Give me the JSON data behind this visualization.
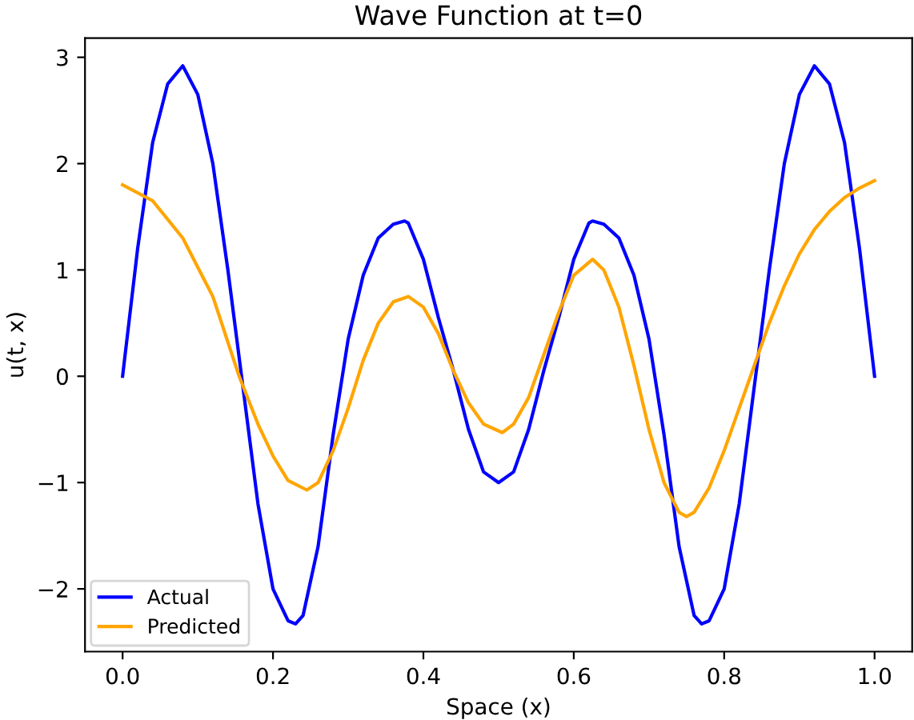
{
  "chart_data": {
    "type": "line",
    "title": "Wave Function at t=0",
    "xlabel": "Space (x)",
    "ylabel": "u(t, x)",
    "xlim": [
      -0.05,
      1.05
    ],
    "ylim": [
      -2.59,
      3.18
    ],
    "xticks": [
      {
        "value": 0,
        "label": "0.0"
      },
      0.2,
      0.4,
      0.6,
      0.8,
      {
        "value": 1,
        "label": "1.0"
      }
    ],
    "yticks": [
      {
        "value": -2,
        "label": "−2"
      },
      {
        "value": -1,
        "label": "−1"
      },
      0,
      1,
      2,
      3
    ],
    "grid": false,
    "legend": "lower left",
    "series": [
      {
        "name": "Actual",
        "color": "#0000ff",
        "x": [
          0,
          0.02,
          0.04,
          0.06,
          0.08,
          0.1,
          0.12,
          0.14,
          0.16,
          0.18,
          0.2,
          0.22,
          0.23,
          0.24,
          0.26,
          0.28,
          0.3,
          0.32,
          0.34,
          0.36,
          0.375,
          0.38,
          0.4,
          0.42,
          0.44,
          0.46,
          0.48,
          0.5,
          0.52,
          0.54,
          0.56,
          0.58,
          0.6,
          0.62,
          0.625,
          0.64,
          0.66,
          0.68,
          0.7,
          0.72,
          0.74,
          0.76,
          0.77,
          0.78,
          0.8,
          0.82,
          0.84,
          0.86,
          0.88,
          0.9,
          0.92,
          0.94,
          0.96,
          0.98,
          1.0
        ],
        "values": [
          0,
          1.2,
          2.2,
          2.75,
          2.92,
          2.65,
          2.0,
          1.0,
          -0.1,
          -1.2,
          -2.0,
          -2.3,
          -2.33,
          -2.25,
          -1.6,
          -0.55,
          0.35,
          0.95,
          1.3,
          1.43,
          1.46,
          1.44,
          1.1,
          0.55,
          0.05,
          -0.5,
          -0.9,
          -1.0,
          -0.9,
          -0.5,
          0.05,
          0.55,
          1.1,
          1.44,
          1.46,
          1.43,
          1.3,
          0.95,
          0.35,
          -0.55,
          -1.6,
          -2.25,
          -2.33,
          -2.3,
          -2.0,
          -1.2,
          -0.1,
          1.0,
          2.0,
          2.65,
          2.92,
          2.75,
          2.2,
          1.2,
          0
        ]
      },
      {
        "name": "Predicted",
        "color": "#ffa500",
        "x": [
          0,
          0.04,
          0.08,
          0.12,
          0.155,
          0.18,
          0.2,
          0.22,
          0.245,
          0.26,
          0.28,
          0.3,
          0.32,
          0.34,
          0.36,
          0.38,
          0.4,
          0.42,
          0.44,
          0.46,
          0.48,
          0.505,
          0.52,
          0.54,
          0.56,
          0.58,
          0.6,
          0.625,
          0.64,
          0.66,
          0.68,
          0.7,
          0.72,
          0.74,
          0.75,
          0.76,
          0.78,
          0.8,
          0.82,
          0.84,
          0.86,
          0.88,
          0.9,
          0.92,
          0.94,
          0.96,
          0.98,
          1.0
        ],
        "values": [
          1.8,
          1.65,
          1.3,
          0.75,
          0.0,
          -0.45,
          -0.75,
          -0.98,
          -1.07,
          -1.0,
          -0.7,
          -0.3,
          0.15,
          0.5,
          0.7,
          0.75,
          0.65,
          0.4,
          0.05,
          -0.25,
          -0.45,
          -0.53,
          -0.45,
          -0.2,
          0.2,
          0.6,
          0.95,
          1.1,
          1.0,
          0.65,
          0.1,
          -0.5,
          -1.0,
          -1.28,
          -1.32,
          -1.28,
          -1.05,
          -0.7,
          -0.3,
          0.1,
          0.5,
          0.85,
          1.15,
          1.38,
          1.55,
          1.68,
          1.77,
          1.84
        ]
      }
    ]
  }
}
